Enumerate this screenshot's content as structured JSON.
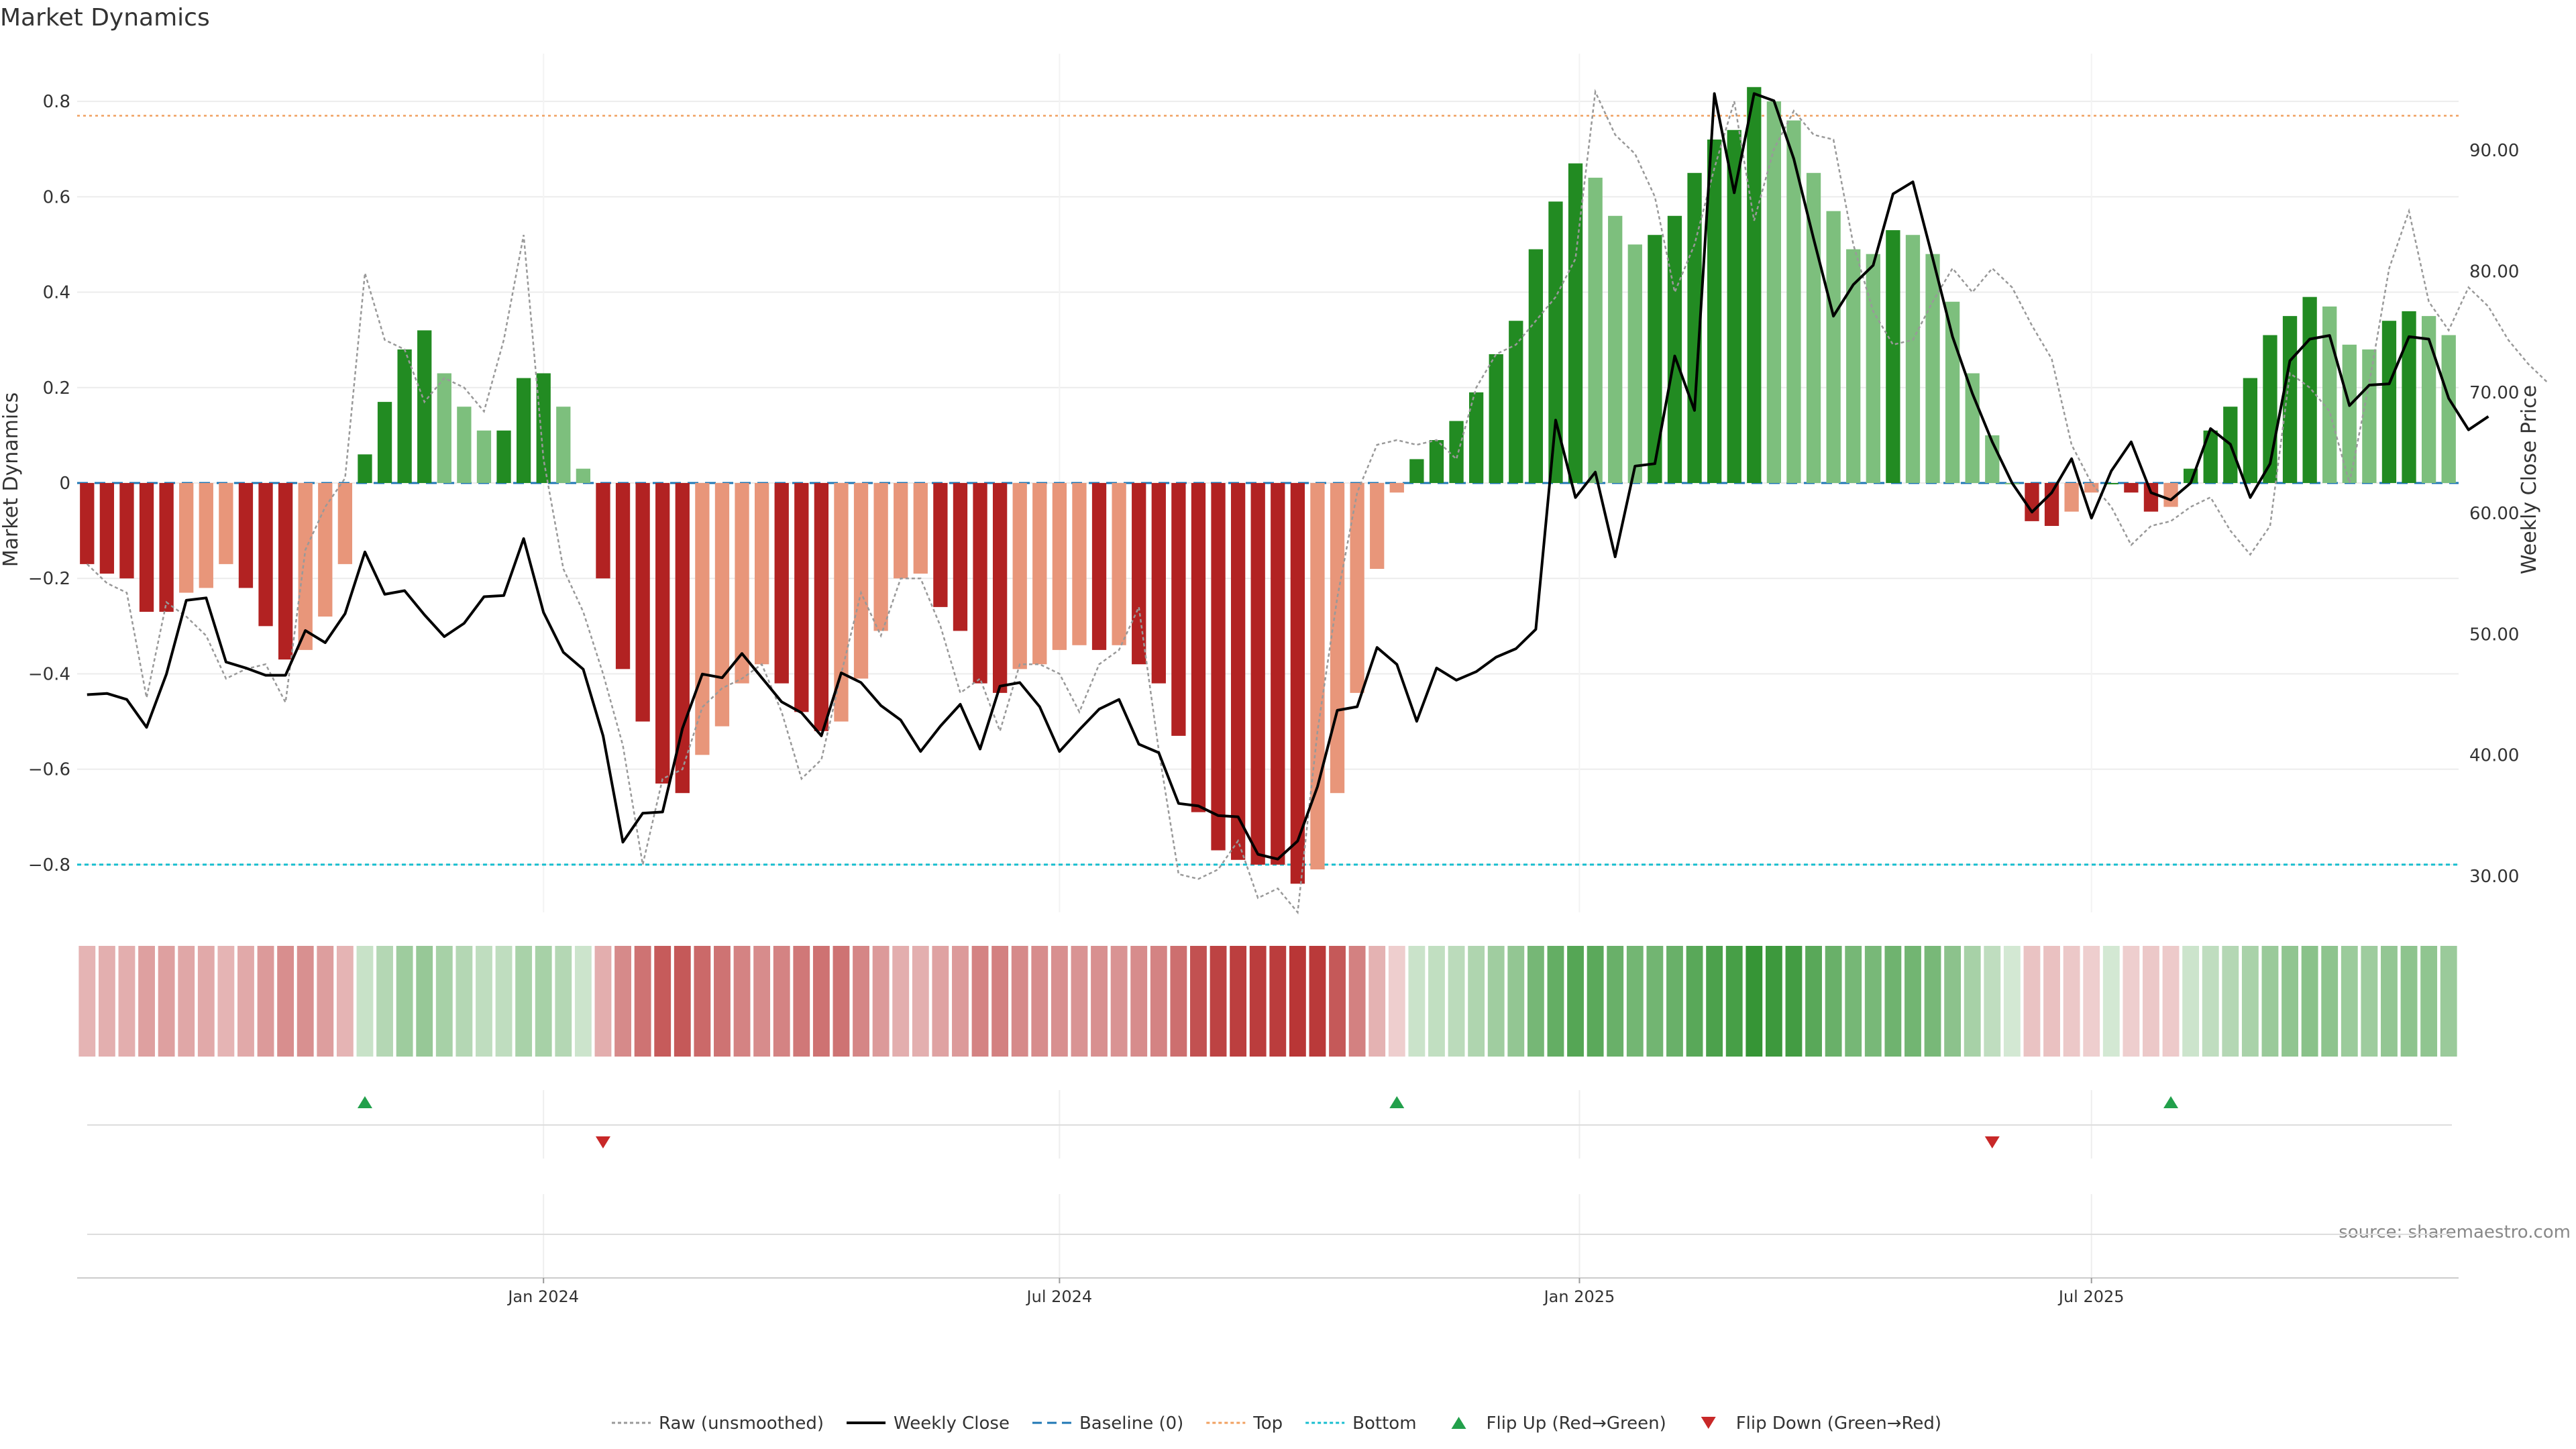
{
  "chart_data": {
    "type": "bar",
    "title": "Market Dynamics",
    "source": "source: sharemaestro.com",
    "ylabel_left": "Market Dynamics",
    "ylabel_right": "Weekly Close Price",
    "ylim_left": [
      -0.9,
      0.9
    ],
    "ylim_right": [
      27,
      98
    ],
    "yticks_left": [
      "0.8",
      "0.6",
      "0.4",
      "0.2",
      "0",
      "−0.2",
      "−0.4",
      "−0.6",
      "−0.8"
    ],
    "yticks_left_values": [
      0.8,
      0.6,
      0.4,
      0.2,
      0,
      -0.2,
      -0.4,
      -0.6,
      -0.8
    ],
    "yticks_right": [
      "90.00",
      "80.00",
      "70.00",
      "60.00",
      "50.00",
      "40.00",
      "30.00"
    ],
    "yticks_right_values": [
      90,
      80,
      70,
      60,
      50,
      40,
      30
    ],
    "x_start": "2023-08-07",
    "x_tick_labels": [
      "Jan 2024",
      "Jul 2024",
      "Jan 2025",
      "Jul 2025"
    ],
    "x_tick_week_index": [
      23.5,
      49.5,
      75.7,
      101.5
    ],
    "top_level": 0.77,
    "bottom_level": -0.8,
    "baseline": 0,
    "grid": true,
    "legend_position": "bottom",
    "colors": {
      "strong_up": "#228b22",
      "weak_up": "#7dbf7d",
      "strong_down": "#b22222",
      "weak_down": "#e8967a",
      "close": "#000000",
      "raw": "#999999",
      "baseline": "#1f77b4",
      "top": "#f0a060",
      "bottom": "#17becf",
      "flip_up": "#22a04b",
      "flip_down": "#c82828"
    },
    "series": [
      {
        "name": "Market Dynamics",
        "values": [
          -0.17,
          -0.19,
          -0.2,
          -0.27,
          -0.27,
          -0.23,
          -0.22,
          -0.17,
          -0.22,
          -0.3,
          -0.37,
          -0.35,
          -0.28,
          -0.17,
          0.06,
          0.17,
          0.28,
          0.32,
          0.23,
          0.16,
          0.11,
          0.11,
          0.22,
          0.23,
          0.16,
          0.03,
          -0.2,
          -0.39,
          -0.5,
          -0.63,
          -0.65,
          -0.57,
          -0.51,
          -0.42,
          -0.38,
          -0.42,
          -0.48,
          -0.52,
          -0.5,
          -0.41,
          -0.31,
          -0.2,
          -0.19,
          -0.26,
          -0.31,
          -0.42,
          -0.44,
          -0.39,
          -0.38,
          -0.35,
          -0.34,
          -0.35,
          -0.34,
          -0.38,
          -0.42,
          -0.53,
          -0.69,
          -0.77,
          -0.79,
          -0.8,
          -0.8,
          -0.84,
          -0.81,
          -0.65,
          -0.44,
          -0.18,
          -0.02,
          0.05,
          0.09,
          0.13,
          0.19,
          0.27,
          0.34,
          0.49,
          0.59,
          0.67,
          0.64,
          0.56,
          0.5,
          0.52,
          0.56,
          0.65,
          0.72,
          0.74,
          0.83,
          0.8,
          0.76,
          0.65,
          0.57,
          0.49,
          0.48,
          0.53,
          0.52,
          0.48,
          0.38,
          0.23,
          0.1,
          0.0,
          -0.08,
          -0.09,
          -0.06,
          -0.02,
          0.0,
          -0.02,
          -0.06,
          -0.05,
          0.03,
          0.11,
          0.16,
          0.22,
          0.31,
          0.35,
          0.39,
          0.37,
          0.29,
          0.28,
          0.34,
          0.36,
          0.35,
          0.31
        ]
      },
      {
        "name": "Raw (unsmoothed)",
        "values": [
          -0.17,
          -0.21,
          -0.23,
          -0.45,
          -0.25,
          -0.28,
          -0.32,
          -0.41,
          -0.39,
          -0.38,
          -0.46,
          -0.14,
          -0.05,
          0.01,
          0.44,
          0.3,
          0.28,
          0.17,
          0.22,
          0.2,
          0.15,
          0.3,
          0.52,
          0.05,
          -0.18,
          -0.27,
          -0.4,
          -0.55,
          -0.8,
          -0.62,
          -0.6,
          -0.47,
          -0.43,
          -0.41,
          -0.38,
          -0.48,
          -0.62,
          -0.58,
          -0.4,
          -0.23,
          -0.32,
          -0.2,
          -0.2,
          -0.3,
          -0.44,
          -0.41,
          -0.52,
          -0.38,
          -0.38,
          -0.4,
          -0.48,
          -0.38,
          -0.35,
          -0.26,
          -0.56,
          -0.82,
          -0.83,
          -0.81,
          -0.75,
          -0.87,
          -0.85,
          -0.9,
          -0.52,
          -0.24,
          -0.02,
          0.08,
          0.09,
          0.08,
          0.09,
          0.05,
          0.2,
          0.27,
          0.29,
          0.34,
          0.39,
          0.47,
          0.82,
          0.73,
          0.69,
          0.6,
          0.4,
          0.5,
          0.66,
          0.8,
          0.55,
          0.7,
          0.78,
          0.73,
          0.72,
          0.5,
          0.36,
          0.29,
          0.3,
          0.38,
          0.45,
          0.4,
          0.45,
          0.41,
          0.33,
          0.26,
          0.08,
          0.0,
          -0.05,
          -0.13,
          -0.09,
          -0.08,
          -0.05,
          -0.03,
          -0.1,
          -0.15,
          -0.09,
          0.23,
          0.2,
          0.15,
          0.0,
          0.21,
          0.45,
          0.57,
          0.38,
          0.32,
          0.41,
          0.37,
          0.3,
          0.25,
          0.21
        ]
      },
      {
        "name": "Weekly Close",
        "values": [
          45.0,
          45.1,
          44.6,
          42.3,
          46.7,
          52.8,
          53.0,
          47.7,
          47.2,
          46.6,
          46.6,
          50.3,
          49.3,
          51.7,
          56.8,
          53.3,
          53.6,
          51.6,
          49.8,
          50.9,
          53.1,
          53.2,
          57.9,
          51.8,
          48.5,
          47.1,
          41.6,
          32.8,
          35.2,
          35.3,
          42.2,
          46.7,
          46.4,
          48.4,
          46.4,
          44.4,
          43.5,
          41.6,
          46.8,
          46.0,
          44.1,
          42.9,
          40.3,
          42.4,
          44.2,
          40.5,
          45.7,
          46.0,
          44.0,
          40.3,
          42.1,
          43.8,
          44.6,
          40.9,
          40.2,
          36.0,
          35.8,
          35.0,
          34.9,
          31.8,
          31.4,
          32.9,
          37.4,
          43.7,
          44.0,
          48.9,
          47.5,
          42.8,
          47.2,
          46.2,
          46.9,
          48.1,
          48.8,
          50.4,
          67.7,
          61.3,
          63.4,
          56.4,
          63.9,
          64.1,
          73.0,
          68.5,
          94.7,
          86.5,
          94.7,
          94.1,
          89.3,
          82.7,
          76.3,
          78.9,
          80.5,
          86.4,
          87.4,
          81.1,
          74.6,
          69.9,
          65.9,
          62.5,
          60.1,
          61.7,
          64.5,
          59.6,
          63.5,
          65.9,
          61.7,
          61.1,
          62.5,
          67.0,
          65.7,
          61.3,
          64.1,
          72.6,
          74.4,
          74.7,
          68.9,
          70.6,
          70.7,
          74.6,
          74.4,
          69.5,
          66.9,
          68.0
        ]
      }
    ],
    "strip_labels": [
      "Signal strip",
      "Flip markers"
    ],
    "flip_up_week_index": [
      14.5,
      66.5,
      105.5
    ],
    "flip_down_week_index": [
      26.5,
      96.5
    ],
    "legend": [
      {
        "label": "Raw (unsmoothed)",
        "kind": "dotted",
        "color": "#999999"
      },
      {
        "label": "Weekly Close",
        "kind": "solid",
        "color": "#000000"
      },
      {
        "label": "Baseline (0)",
        "kind": "dashed",
        "color": "#1f77b4"
      },
      {
        "label": "Top",
        "kind": "dotted",
        "color": "#f0a060"
      },
      {
        "label": "Bottom",
        "kind": "dotted",
        "color": "#17becf"
      },
      {
        "label": "Flip Up (Red→Green)",
        "kind": "tri-up",
        "color": "#22a04b"
      },
      {
        "label": "Flip Down (Green→Red)",
        "kind": "tri-down",
        "color": "#c82828"
      }
    ]
  }
}
